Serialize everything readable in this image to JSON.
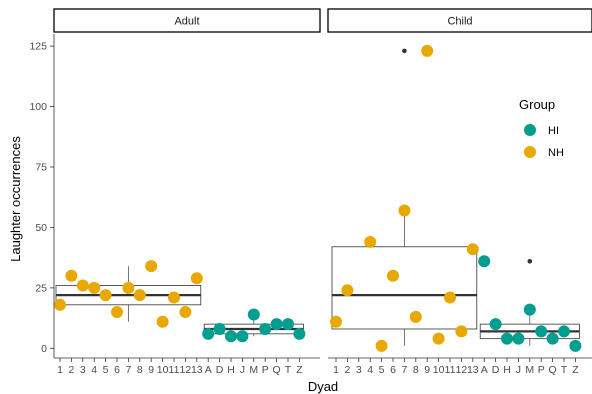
{
  "chart_data": {
    "type": "box",
    "ylabel": "Laughter occurrences",
    "xlabel": "Dyad",
    "y_ticks": [
      0,
      25,
      50,
      75,
      100,
      125
    ],
    "ylim": [
      -4,
      130
    ],
    "grid": false,
    "legend": {
      "title": "Group",
      "placement": "right",
      "entries": [
        {
          "name": "HI",
          "color": "#009E8F"
        },
        {
          "name": "NH",
          "color": "#E8A800"
        }
      ]
    },
    "colors": {
      "HI": "#009E8F",
      "NH": "#E8A800",
      "outlier": "#333333",
      "box": "#333333"
    },
    "panels": [
      {
        "title": "Adult",
        "categories": [
          "1",
          "2",
          "3",
          "4",
          "5",
          "6",
          "7",
          "8",
          "9",
          "10",
          "11",
          "12",
          "13",
          "A",
          "D",
          "H",
          "J",
          "M",
          "P",
          "Q",
          "T",
          "Z"
        ],
        "points": [
          {
            "x": "1",
            "y": 18,
            "group": "NH"
          },
          {
            "x": "2",
            "y": 30,
            "group": "NH"
          },
          {
            "x": "3",
            "y": 26,
            "group": "NH"
          },
          {
            "x": "4",
            "y": 25,
            "group": "NH"
          },
          {
            "x": "5",
            "y": 22,
            "group": "NH"
          },
          {
            "x": "6",
            "y": 15,
            "group": "NH"
          },
          {
            "x": "7",
            "y": 25,
            "group": "NH"
          },
          {
            "x": "8",
            "y": 22,
            "group": "NH"
          },
          {
            "x": "9",
            "y": 34,
            "group": "NH"
          },
          {
            "x": "10",
            "y": 11,
            "group": "NH"
          },
          {
            "x": "11",
            "y": 21,
            "group": "NH"
          },
          {
            "x": "12",
            "y": 15,
            "group": "NH"
          },
          {
            "x": "13",
            "y": 29,
            "group": "NH"
          },
          {
            "x": "A",
            "y": 6,
            "group": "HI"
          },
          {
            "x": "D",
            "y": 8,
            "group": "HI"
          },
          {
            "x": "H",
            "y": 5,
            "group": "HI"
          },
          {
            "x": "J",
            "y": 5,
            "group": "HI"
          },
          {
            "x": "M",
            "y": 14,
            "group": "HI"
          },
          {
            "x": "P",
            "y": 8,
            "group": "HI"
          },
          {
            "x": "Q",
            "y": 10,
            "group": "HI"
          },
          {
            "x": "T",
            "y": 10,
            "group": "HI"
          },
          {
            "x": "Z",
            "y": 6,
            "group": "HI"
          }
        ],
        "boxes": [
          {
            "group": "NH",
            "x_from": "1",
            "x_to": "13",
            "lower_whisker": 11,
            "q1": 18,
            "median": 22,
            "q3": 26,
            "upper_whisker": 34,
            "outliers": []
          },
          {
            "group": "HI",
            "x_from": "A",
            "x_to": "Z",
            "lower_whisker": 5,
            "q1": 6,
            "median": 8,
            "q3": 10,
            "upper_whisker": 14,
            "outliers": []
          }
        ]
      },
      {
        "title": "Child",
        "categories": [
          "1",
          "2",
          "3",
          "4",
          "5",
          "6",
          "7",
          "8",
          "9",
          "10",
          "11",
          "12",
          "13",
          "A",
          "D",
          "H",
          "J",
          "M",
          "P",
          "Q",
          "T",
          "Z"
        ],
        "points": [
          {
            "x": "1",
            "y": 11,
            "group": "NH"
          },
          {
            "x": "2",
            "y": 24,
            "group": "NH"
          },
          {
            "x": "4",
            "y": 44,
            "group": "NH"
          },
          {
            "x": "5",
            "y": 1,
            "group": "NH"
          },
          {
            "x": "6",
            "y": 30,
            "group": "NH"
          },
          {
            "x": "7",
            "y": 57,
            "group": "NH"
          },
          {
            "x": "8",
            "y": 13,
            "group": "NH"
          },
          {
            "x": "9",
            "y": 123,
            "group": "NH"
          },
          {
            "x": "10",
            "y": 4,
            "group": "NH"
          },
          {
            "x": "11",
            "y": 21,
            "group": "NH"
          },
          {
            "x": "12",
            "y": 7,
            "group": "NH"
          },
          {
            "x": "13",
            "y": 41,
            "group": "NH"
          },
          {
            "x": "A",
            "y": 36,
            "group": "HI"
          },
          {
            "x": "D",
            "y": 10,
            "group": "HI"
          },
          {
            "x": "H",
            "y": 4,
            "group": "HI"
          },
          {
            "x": "J",
            "y": 4,
            "group": "HI"
          },
          {
            "x": "M",
            "y": 16,
            "group": "HI"
          },
          {
            "x": "P",
            "y": 7,
            "group": "HI"
          },
          {
            "x": "Q",
            "y": 4,
            "group": "HI"
          },
          {
            "x": "T",
            "y": 7,
            "group": "HI"
          },
          {
            "x": "Z",
            "y": 1,
            "group": "HI"
          }
        ],
        "boxes": [
          {
            "group": "NH",
            "x_from": "1",
            "x_to": "13",
            "lower_whisker": 1,
            "q1": 8,
            "median": 22,
            "q3": 42,
            "upper_whisker": 57,
            "outliers": [
              {
                "x": "7",
                "y": 123
              }
            ]
          },
          {
            "group": "HI",
            "x_from": "A",
            "x_to": "Z",
            "lower_whisker": 1,
            "q1": 4,
            "median": 7,
            "q3": 10,
            "upper_whisker": 16,
            "outliers": [
              {
                "x": "M",
                "y": 36
              }
            ]
          }
        ]
      }
    ]
  }
}
